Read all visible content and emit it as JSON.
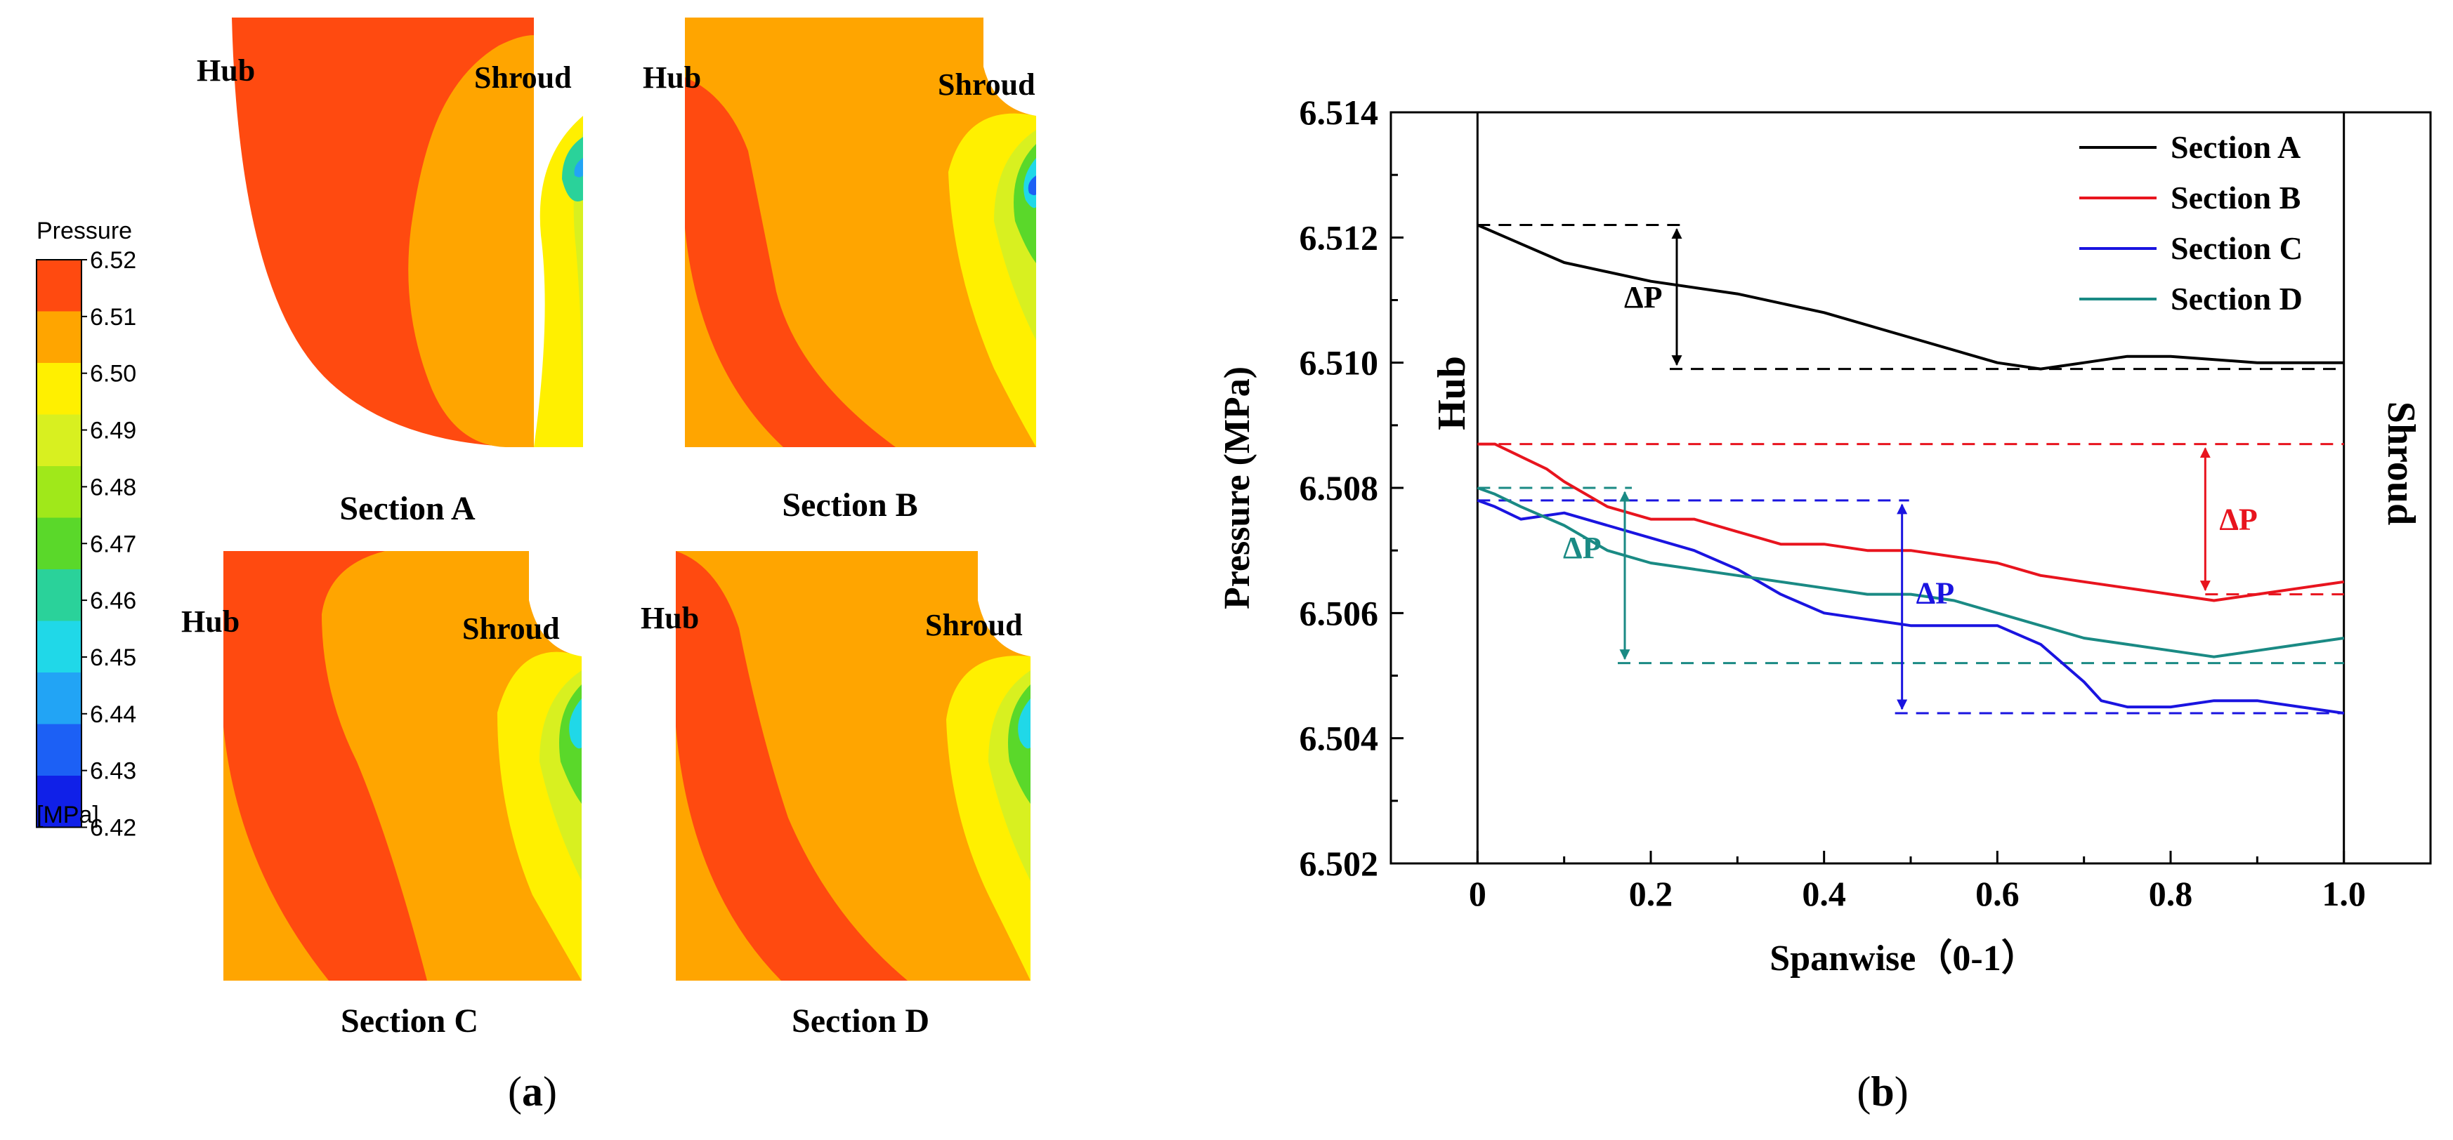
{
  "panel_a": {
    "label_open": "(",
    "label_letter": "a",
    "label_close": ")",
    "legend": {
      "title": "Pressure",
      "unit": "[MPa]",
      "levels": [
        "6.52",
        "6.51",
        "6.50",
        "6.49",
        "6.48",
        "6.47",
        "6.46",
        "6.45",
        "6.44",
        "6.43",
        "6.42"
      ],
      "colors": [
        "#ff4a10",
        "#ffa500",
        "#fff000",
        "#d8f020",
        "#a0e81a",
        "#5ad82a",
        "#2ad29a",
        "#20d8e8",
        "#22a4f5",
        "#1c60f5",
        "#1020e8"
      ]
    },
    "contours": [
      {
        "title": "Section A",
        "hub": "Hub",
        "shroud": "Shroud"
      },
      {
        "title": "Section B",
        "hub": "Hub",
        "shroud": "Shroud"
      },
      {
        "title": "Section C",
        "hub": "Hub",
        "shroud": "Shroud"
      },
      {
        "title": "Section D",
        "hub": "Hub",
        "shroud": "Shroud"
      }
    ]
  },
  "panel_b": {
    "label_open": "(",
    "label_letter": "b",
    "label_close": ")",
    "hub_label": "Hub",
    "shroud_label": "Shroud",
    "delta_label": "ΔP"
  },
  "chart_data": {
    "type": "line",
    "title": "",
    "xlabel": "Spanwise（0-1）",
    "ylabel": "Pressure (MPa)",
    "xlim": [
      -0.1,
      1.1
    ],
    "ylim": [
      6.502,
      6.514
    ],
    "xticks": [
      0,
      0.2,
      0.4,
      0.6,
      0.8,
      1.0
    ],
    "xtick_labels": [
      "0",
      "0.2",
      "0.4",
      "0.6",
      "0.8",
      "1.0"
    ],
    "yticks": [
      6.502,
      6.504,
      6.506,
      6.508,
      6.51,
      6.512,
      6.514
    ],
    "ytick_labels": [
      "6.502",
      "6.504",
      "6.506",
      "6.508",
      "6.510",
      "6.512",
      "6.514"
    ],
    "legend_position": "top-right",
    "series": [
      {
        "name": "Section A",
        "color": "#000000",
        "x": [
          0,
          0.05,
          0.1,
          0.2,
          0.3,
          0.4,
          0.5,
          0.6,
          0.65,
          0.7,
          0.75,
          0.8,
          0.9,
          1.0
        ],
        "y": [
          6.5122,
          6.5119,
          6.5116,
          6.5113,
          6.5111,
          6.5108,
          6.5104,
          6.51,
          6.5099,
          6.51,
          6.5101,
          6.5101,
          6.51,
          6.51
        ],
        "dp": {
          "x": 0.23,
          "ymax": 6.5122,
          "ymin": 6.5099
        }
      },
      {
        "name": "Section B",
        "color": "#e8141e",
        "x": [
          0,
          0.02,
          0.05,
          0.08,
          0.1,
          0.15,
          0.2,
          0.25,
          0.3,
          0.35,
          0.4,
          0.45,
          0.5,
          0.55,
          0.6,
          0.65,
          0.7,
          0.75,
          0.8,
          0.85,
          0.9,
          0.95,
          1.0
        ],
        "y": [
          6.5087,
          6.5087,
          6.5085,
          6.5083,
          6.5081,
          6.5077,
          6.5075,
          6.5075,
          6.5073,
          6.5071,
          6.5071,
          6.507,
          6.507,
          6.5069,
          6.5068,
          6.5066,
          6.5065,
          6.5064,
          6.5063,
          6.5062,
          6.5063,
          6.5064,
          6.5065
        ],
        "dp": {
          "x": 0.84,
          "ymax": 6.5087,
          "ymin": 6.5063
        }
      },
      {
        "name": "Section C",
        "color": "#1a14e0",
        "x": [
          0,
          0.02,
          0.05,
          0.1,
          0.15,
          0.2,
          0.25,
          0.3,
          0.35,
          0.4,
          0.45,
          0.5,
          0.55,
          0.6,
          0.65,
          0.7,
          0.72,
          0.75,
          0.8,
          0.85,
          0.9,
          0.95,
          1.0
        ],
        "y": [
          6.5078,
          6.5077,
          6.5075,
          6.5076,
          6.5074,
          6.5072,
          6.507,
          6.5067,
          6.5063,
          6.506,
          6.5059,
          6.5058,
          6.5058,
          6.5058,
          6.5055,
          6.5049,
          6.5046,
          6.5045,
          6.5045,
          6.5046,
          6.5046,
          6.5045,
          6.5044
        ],
        "dp": {
          "x": 0.49,
          "ymax": 6.5078,
          "ymin": 6.5044
        }
      },
      {
        "name": "Section D",
        "color": "#1a8a84",
        "x": [
          0,
          0.02,
          0.05,
          0.1,
          0.15,
          0.2,
          0.25,
          0.3,
          0.35,
          0.4,
          0.45,
          0.5,
          0.55,
          0.6,
          0.65,
          0.7,
          0.75,
          0.8,
          0.85,
          0.9,
          0.95,
          1.0
        ],
        "y": [
          6.508,
          6.5079,
          6.5077,
          6.5074,
          6.507,
          6.5068,
          6.5067,
          6.5066,
          6.5065,
          6.5064,
          6.5063,
          6.5063,
          6.5062,
          6.506,
          6.5058,
          6.5056,
          6.5055,
          6.5054,
          6.5053,
          6.5054,
          6.5055,
          6.5056
        ],
        "dp": {
          "x": 0.17,
          "ymax": 6.508,
          "ymin": 6.5052
        }
      }
    ]
  }
}
